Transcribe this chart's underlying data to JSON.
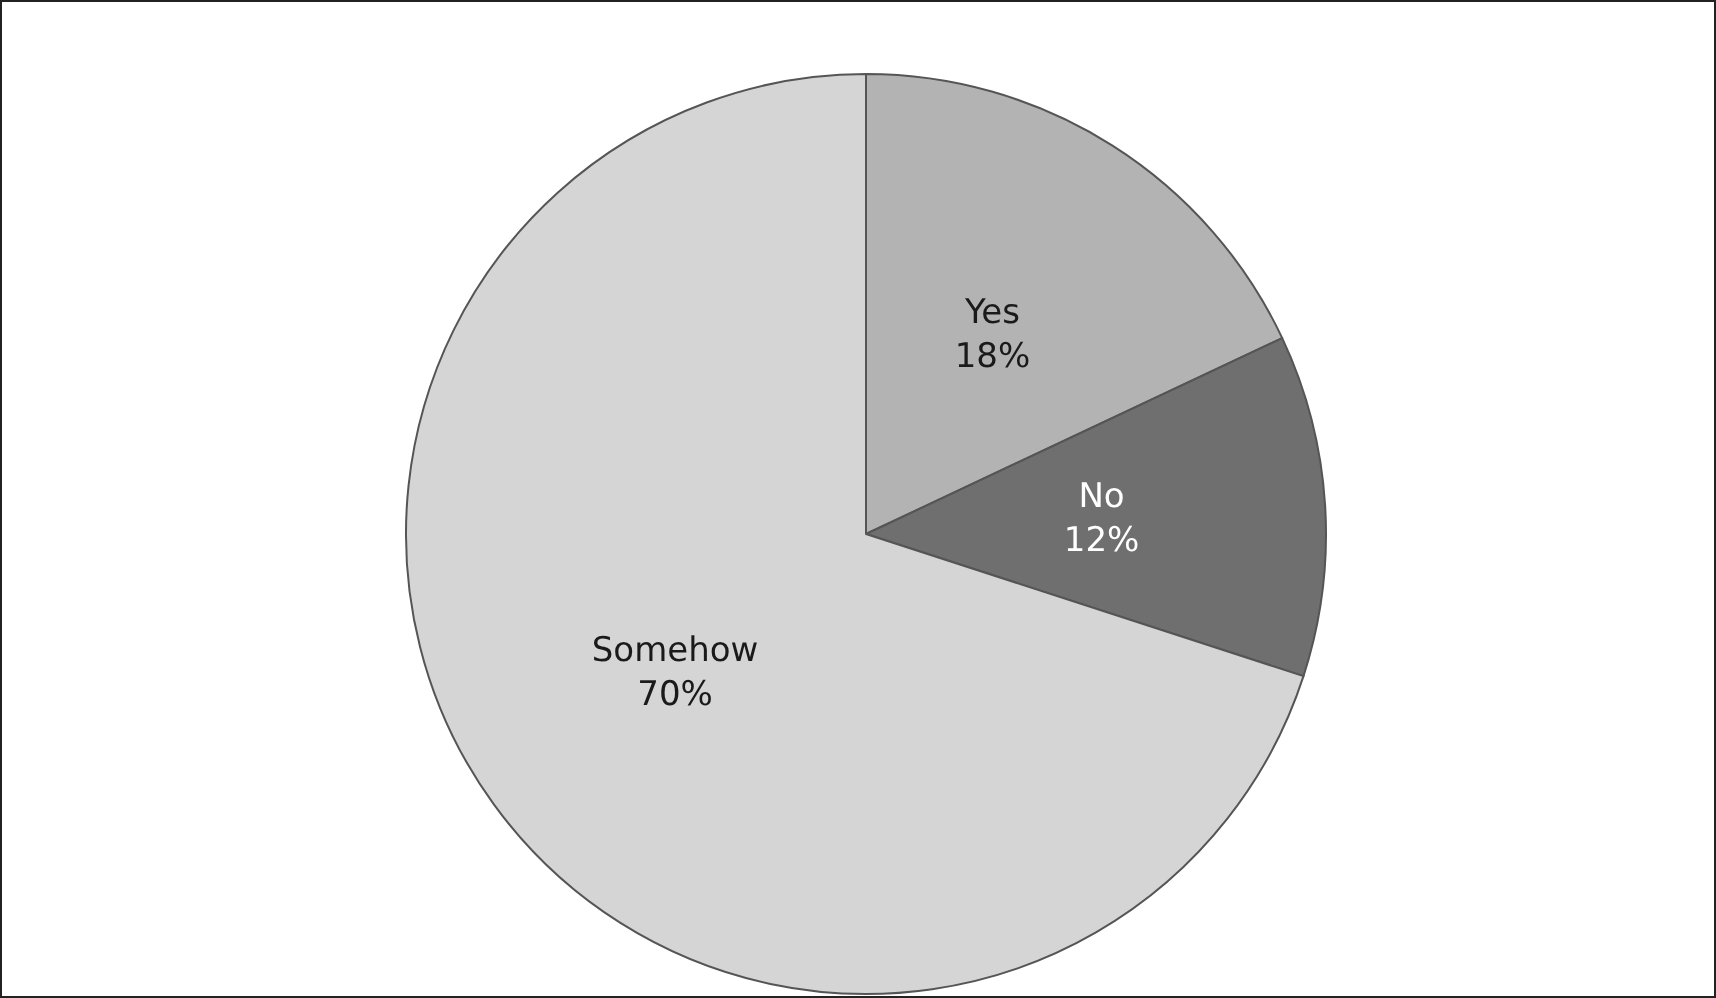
{
  "chart_data": {
    "type": "pie",
    "categories": [
      "Yes",
      "No",
      "Somehow"
    ],
    "values": [
      18,
      12,
      70
    ],
    "colors": [
      "#b3b3b3",
      "#6f6f6f",
      "#d5d5d5"
    ],
    "value_labels": [
      "18%",
      "12%",
      "70%"
    ],
    "legend": false
  }
}
